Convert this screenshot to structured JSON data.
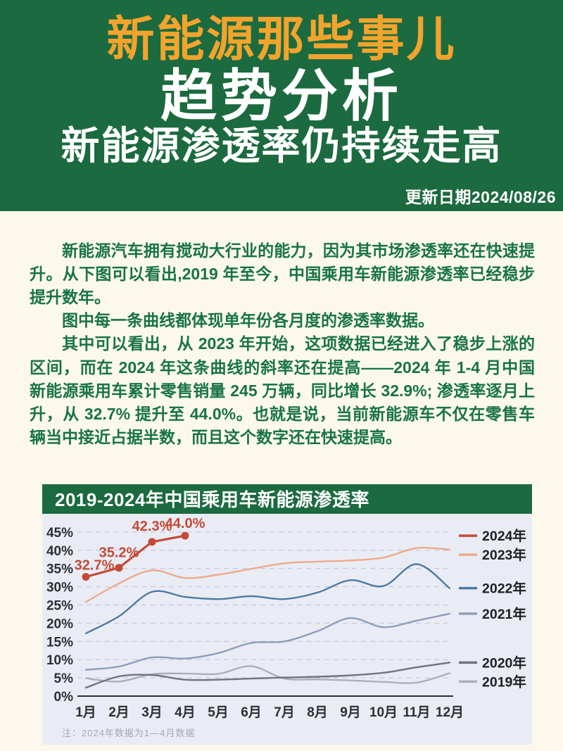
{
  "header": {
    "brand": "新能源那些事儿",
    "section": "趋势分析",
    "headline": "新能源渗透率仍持续走高",
    "update_date": "更新日期2024/08/26",
    "colors": {
      "background": "#1c6a3f",
      "brand_text": "#f2a42d",
      "headline_text": "#ffffff"
    }
  },
  "article": {
    "text_color": "#187347",
    "paragraphs": [
      "新能源汽车拥有搅动大行业的能力，因为其市场渗透率还在快速提升。从下图可以看出,2019 年至今，中国乘用车新能源渗透率已经稳步提升数年。",
      "图中每一条曲线都体现单年份各月度的渗透率数据。",
      "其中可以看出，从 2023 年开始，这项数据已经进入了稳步上涨的区间，而在 2024 年这条曲线的斜率还在提高——2024 年 1-4 月中国新能源乘用车累计零售销量 245 万辆，同比增长 32.9%; 渗透率逐月上升，从 32.7% 提升至 44.0%。也就是说，当前新能源车不仅在零售车辆当中接近占据半数，而且这个数字还在快速提高。"
    ]
  },
  "chart": {
    "title": "2019-2024年中国乘用车新能源渗透率",
    "note": "注：2024年数据为1—4月数据",
    "header_bg": "#1c6a3f",
    "plot_bg": "#eaecf5"
  },
  "chart_data": {
    "type": "line",
    "title": "2019-2024年中国乘用车新能源渗透率",
    "xlabel": "",
    "ylabel": "",
    "categories": [
      "1月",
      "2月",
      "3月",
      "4月",
      "5月",
      "6月",
      "7月",
      "8月",
      "9月",
      "10月",
      "11月",
      "12月"
    ],
    "y_ticks": [
      "0%",
      "5%",
      "10%",
      "15%",
      "20%",
      "25%",
      "30%",
      "35%",
      "40%",
      "45%"
    ],
    "ylim": [
      0,
      45
    ],
    "grid": "horizontal-dashed",
    "legend_position": "right",
    "colors": {
      "grid": "#c9ccd9",
      "axis": "#2c2c30"
    },
    "note": "注：2024年数据为1—4月数据",
    "series": [
      {
        "name": "2024年",
        "color": "#c54a36",
        "markers": true,
        "smooth": false,
        "values": [
          32.7,
          35.2,
          42.3,
          44.0
        ],
        "point_labels": [
          "32.7%",
          "35.2%",
          "42.3%",
          "44.0%"
        ]
      },
      {
        "name": "2023年",
        "color": "#ecaa8b",
        "markers": false,
        "smooth": true,
        "values": [
          25.8,
          30.9,
          34.5,
          32.4,
          33.3,
          34.9,
          36.4,
          36.9,
          37.2,
          38.0,
          40.6,
          40.2
        ]
      },
      {
        "name": "2022年",
        "color": "#4d7aa3",
        "markers": false,
        "smooth": true,
        "values": [
          17.2,
          21.9,
          28.6,
          27.2,
          26.6,
          27.4,
          26.6,
          28.4,
          31.8,
          30.2,
          36.2,
          29.6
        ]
      },
      {
        "name": "2021年",
        "color": "#8e9db9",
        "markers": false,
        "smooth": true,
        "values": [
          7.2,
          8.1,
          10.6,
          10.3,
          11.8,
          14.6,
          15.0,
          17.8,
          21.4,
          18.9,
          20.7,
          22.6
        ]
      },
      {
        "name": "2020年",
        "color": "#6f757d",
        "markers": false,
        "smooth": true,
        "values": [
          2.3,
          5.4,
          5.8,
          4.5,
          4.5,
          4.8,
          5.1,
          5.3,
          5.7,
          6.4,
          7.9,
          9.2
        ]
      },
      {
        "name": "2019年",
        "color": "#aab0ba",
        "markers": false,
        "smooth": true,
        "values": [
          4.9,
          4.0,
          6.0,
          6.2,
          6.1,
          8.2,
          4.8,
          4.6,
          4.3,
          3.9,
          3.7,
          6.3
        ]
      }
    ]
  }
}
